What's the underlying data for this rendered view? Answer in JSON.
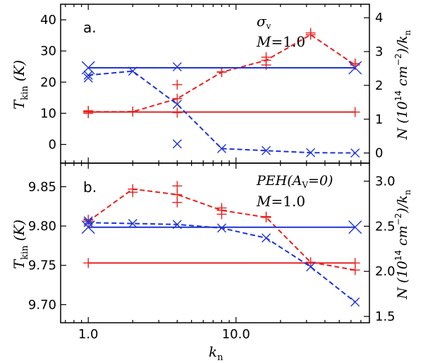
{
  "chart_data": [
    {
      "type": "line",
      "panel_label": "a.",
      "annotation": [
        "σ",
        "v",
        "M",
        "=1.0"
      ],
      "xlabel": [
        "k",
        "n"
      ],
      "xscale": "log",
      "xlim": [
        0.65,
        80
      ],
      "x_ticks": [
        1.0,
        10.0
      ],
      "x_tick_labels": [],
      "ylabel_left": [
        "T",
        "kin",
        "(K)"
      ],
      "ylim_left": [
        -6,
        45
      ],
      "y_ticks_left": [
        0,
        10,
        20,
        30,
        40
      ],
      "y_tick_labels_left": [
        "0",
        "10",
        "20",
        "30",
        "40"
      ],
      "ylabel_right": [
        "N (10",
        "14",
        "cm",
        "−2",
        ")/k",
        "n"
      ],
      "ylim_right": [
        -0.3,
        4.4
      ],
      "y_ticks_right": [
        0,
        1,
        2,
        3,
        4
      ],
      "y_tick_labels_right": [
        "0",
        "1",
        "2",
        "3",
        "4"
      ],
      "series": [
        {
          "name": "T_kin dashed (red)",
          "color": "#e8221f",
          "axis": "left",
          "style": "dashed",
          "marker": "plus",
          "x": [
            1,
            2,
            4,
            8,
            16,
            32,
            64
          ],
          "values": [
            10.5,
            10.5,
            14.7,
            23.2,
            27.0,
            35.2,
            25.5
          ]
        },
        {
          "name": "T_kin extra points (red)",
          "color": "#e8221f",
          "axis": "left",
          "style": "none",
          "marker": "plus",
          "x": [
            1,
            1,
            2,
            4,
            4,
            8,
            16,
            16,
            32,
            64
          ],
          "values": [
            10.8,
            10.0,
            10.6,
            19.2,
            10.2,
            23.3,
            25.5,
            28.0,
            35.8,
            26.0
          ]
        },
        {
          "name": "T_kin level (red)",
          "color": "#e8221f",
          "axis": "left",
          "style": "solid",
          "marker": "plus",
          "x": [
            1,
            64
          ],
          "values": [
            10.4,
            10.4
          ]
        },
        {
          "name": "N dashed (blue)",
          "color": "#1f34d6",
          "axis": "right",
          "style": "dashed",
          "marker": "x",
          "x": [
            1,
            2,
            4,
            8,
            16,
            32,
            64
          ],
          "values": [
            2.3,
            2.42,
            1.44,
            0.13,
            0.07,
            0.01,
            0.0
          ]
        },
        {
          "name": "N extra points (blue)",
          "color": "#1f34d6",
          "axis": "right",
          "style": "none",
          "marker": "x",
          "x": [
            1,
            4,
            4
          ],
          "values": [
            2.22,
            2.55,
            0.27
          ]
        },
        {
          "name": "N level (blue)",
          "color": "#1f34d6",
          "axis": "right",
          "style": "solid",
          "marker": "bigx",
          "x": [
            1,
            64
          ],
          "values": [
            2.52,
            2.52
          ]
        }
      ]
    },
    {
      "type": "line",
      "panel_label": "b.",
      "annotation": [
        "PEH(A",
        "V",
        "=0)",
        "M",
        "=1.0"
      ],
      "xlabel": [
        "k",
        "n"
      ],
      "xscale": "log",
      "xlim": [
        0.65,
        80
      ],
      "x_ticks": [
        1.0,
        10.0
      ],
      "x_tick_labels": [
        "1.0",
        "10.0"
      ],
      "ylabel_left": [
        "T",
        "kin",
        "(K)"
      ],
      "ylim_left": [
        9.677,
        9.88
      ],
      "y_ticks_left": [
        9.7,
        9.75,
        9.8,
        9.85
      ],
      "y_tick_labels_left": [
        "9.70",
        "9.75",
        "9.80",
        "9.85"
      ],
      "ylabel_right": [
        "N (10",
        "14",
        "cm",
        "−2",
        ")/k",
        "n"
      ],
      "ylim_right": [
        1.43,
        3.2
      ],
      "y_ticks_right": [
        1.5,
        2.0,
        2.5,
        3.0
      ],
      "y_tick_labels_right": [
        "1.5",
        "2.0",
        "2.5",
        "3.0"
      ],
      "series": [
        {
          "name": "T_kin dashed (red)",
          "color": "#e8221f",
          "axis": "left",
          "style": "dashed",
          "marker": "plus",
          "x": [
            1,
            2,
            4,
            8,
            16,
            32,
            64
          ],
          "values": [
            9.806,
            9.847,
            9.84,
            9.82,
            9.811,
            9.754,
            9.744
          ]
        },
        {
          "name": "T_kin extra points (red)",
          "color": "#e8221f",
          "axis": "left",
          "style": "none",
          "marker": "plus",
          "x": [
            1,
            2,
            4,
            4,
            8,
            8,
            16
          ],
          "values": [
            9.808,
            9.843,
            9.851,
            9.83,
            9.823,
            9.815,
            9.812
          ]
        },
        {
          "name": "T_kin level (red)",
          "color": "#e8221f",
          "axis": "left",
          "style": "solid",
          "marker": "plus",
          "x": [
            1,
            64
          ],
          "values": [
            9.753,
            9.753
          ]
        },
        {
          "name": "N dashed (blue)",
          "color": "#1f34d6",
          "axis": "right",
          "style": "dashed",
          "marker": "x",
          "x": [
            1,
            2,
            4,
            8,
            16,
            32,
            64
          ],
          "values": [
            2.54,
            2.53,
            2.52,
            2.48,
            2.37,
            2.05,
            1.66
          ]
        },
        {
          "name": "N extra points (blue)",
          "color": "#1f34d6",
          "axis": "right",
          "style": "none",
          "marker": "x",
          "x": [
            1
          ],
          "values": [
            2.56
          ]
        },
        {
          "name": "N level (blue)",
          "color": "#1f34d6",
          "axis": "right",
          "style": "solid",
          "marker": "bigx",
          "x": [
            1,
            64
          ],
          "values": [
            2.49,
            2.49
          ]
        }
      ]
    }
  ]
}
